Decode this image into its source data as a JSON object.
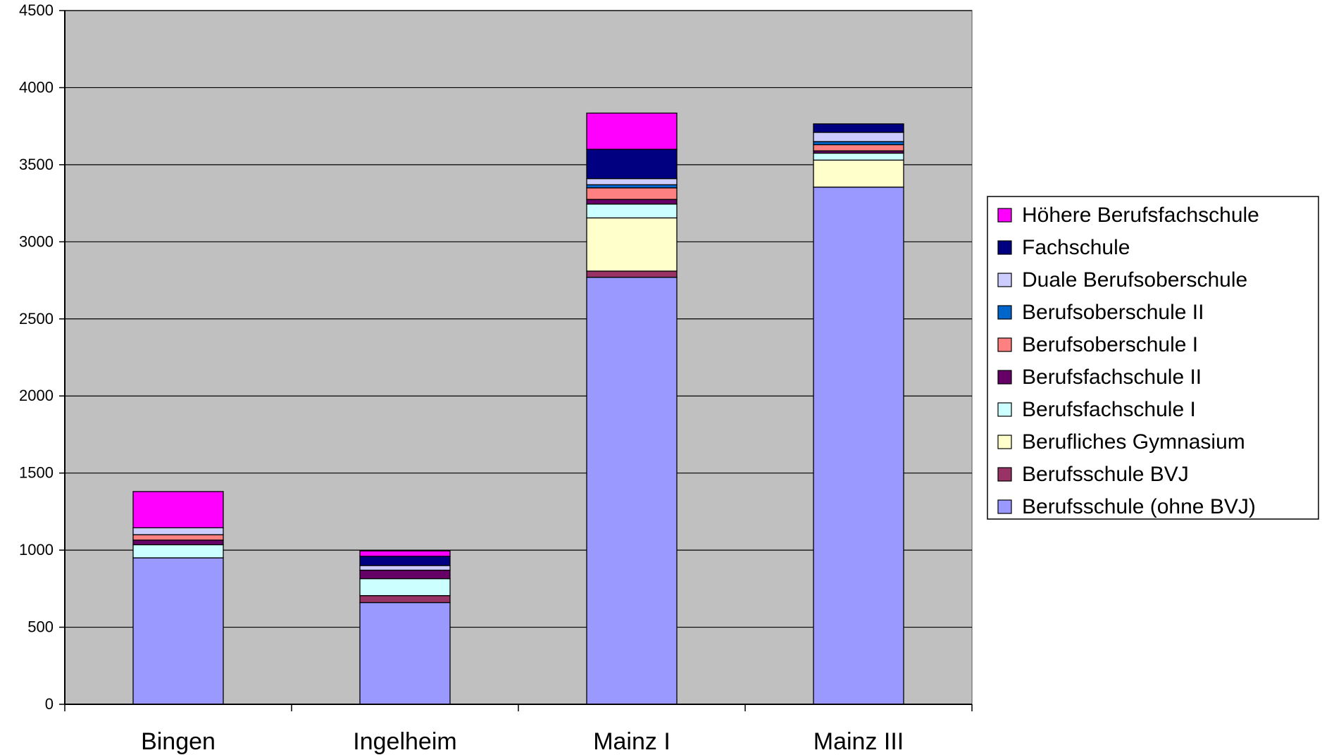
{
  "chart_data": {
    "type": "bar",
    "stacked": true,
    "categories": [
      "Bingen",
      "Ingelheim",
      "Mainz I",
      "Mainz III"
    ],
    "ylim": [
      0,
      4500
    ],
    "yticks": [
      0,
      500,
      1000,
      1500,
      2000,
      2500,
      3000,
      3500,
      4000,
      4500
    ],
    "grid": true,
    "legend_position": "right",
    "plot_background": "#c0c0c0",
    "series": [
      {
        "name": "Berufsschule (ohne BVJ)",
        "color": "#9999ff",
        "values": [
          950,
          660,
          2770,
          3355
        ]
      },
      {
        "name": "Berufsschule BVJ",
        "color": "#993366",
        "values": [
          0,
          45,
          40,
          0
        ]
      },
      {
        "name": "Berufliches Gymnasium",
        "color": "#ffffcc",
        "values": [
          0,
          0,
          345,
          175
        ]
      },
      {
        "name": "Berufsfachschule I",
        "color": "#ccffff",
        "values": [
          85,
          110,
          90,
          45
        ]
      },
      {
        "name": "Berufsfachschule II",
        "color": "#660066",
        "values": [
          30,
          55,
          30,
          15
        ]
      },
      {
        "name": "Berufsoberschule I",
        "color": "#ff8080",
        "values": [
          35,
          0,
          75,
          40
        ]
      },
      {
        "name": "Berufsoberschule II",
        "color": "#0066cc",
        "values": [
          0,
          0,
          20,
          20
        ]
      },
      {
        "name": "Duale Berufsoberschule",
        "color": "#ccccff",
        "values": [
          45,
          30,
          40,
          60
        ]
      },
      {
        "name": "Fachschule",
        "color": "#000080",
        "values": [
          0,
          60,
          190,
          55
        ]
      },
      {
        "name": "Höhere Berufsfachschule",
        "color": "#ff00ff",
        "values": [
          235,
          35,
          235,
          0
        ]
      }
    ]
  }
}
